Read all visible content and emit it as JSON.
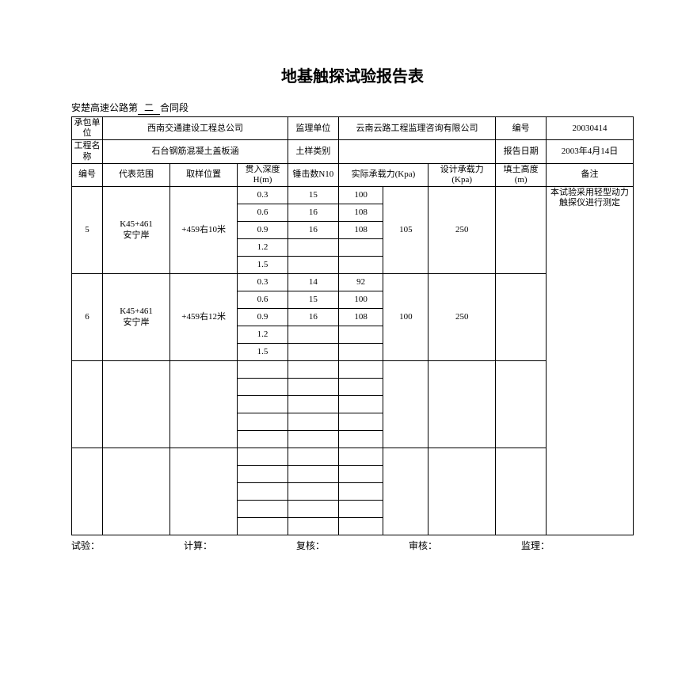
{
  "title": "地基触探试验报告表",
  "subtitle_prefix": "安楚高速公路第",
  "subtitle_number": "二",
  "subtitle_suffix": "合同段",
  "header": {
    "contractor_lbl": "承包单位",
    "contractor_val": "西南交通建设工程总公司",
    "supervisor_lbl": "监理单位",
    "supervisor_val": "云南云路工程监理咨询有限公司",
    "code_lbl": "编号",
    "code_val": "20030414",
    "project_lbl": "工程名称",
    "project_val": "石台钢筋混凝土盖板涵",
    "soil_lbl": "土样类别",
    "soil_val": "",
    "date_lbl": "报告日期",
    "date_val": "2003年4月14日"
  },
  "columns": {
    "no": "编号",
    "range": "代表范围",
    "position": "取样位置",
    "depth": "贯入深度H(m)",
    "hammer": "锤击数N10",
    "actual": "实际承载力(Kpa)",
    "design": "设计承载力(Kpa)",
    "fill": "填土高度(m)",
    "remark": "备注"
  },
  "groups": [
    {
      "no": "5",
      "range": "K45+461安宁岸",
      "position": "+459右10米",
      "actual": "105",
      "design": "250",
      "fill": "",
      "rows": [
        {
          "depth": "0.3",
          "hammer": "15",
          "value": "100"
        },
        {
          "depth": "0.6",
          "hammer": "16",
          "value": "108"
        },
        {
          "depth": "0.9",
          "hammer": "16",
          "value": "108"
        },
        {
          "depth": "1.2",
          "hammer": "",
          "value": ""
        },
        {
          "depth": "1.5",
          "hammer": "",
          "value": ""
        }
      ]
    },
    {
      "no": "6",
      "range": "K45+461安宁岸",
      "position": "+459右12米",
      "actual": "100",
      "design": "250",
      "fill": "",
      "rows": [
        {
          "depth": "0.3",
          "hammer": "14",
          "value": "92"
        },
        {
          "depth": "0.6",
          "hammer": "15",
          "value": "100"
        },
        {
          "depth": "0.9",
          "hammer": "16",
          "value": "108"
        },
        {
          "depth": "1.2",
          "hammer": "",
          "value": ""
        },
        {
          "depth": "1.5",
          "hammer": "",
          "value": ""
        }
      ]
    },
    {
      "no": "",
      "range": "",
      "position": "",
      "actual": "",
      "design": "",
      "fill": "",
      "rows": [
        {
          "depth": "",
          "hammer": "",
          "value": ""
        },
        {
          "depth": "",
          "hammer": "",
          "value": ""
        },
        {
          "depth": "",
          "hammer": "",
          "value": ""
        },
        {
          "depth": "",
          "hammer": "",
          "value": ""
        },
        {
          "depth": "",
          "hammer": "",
          "value": ""
        }
      ]
    },
    {
      "no": "",
      "range": "",
      "position": "",
      "actual": "",
      "design": "",
      "fill": "",
      "rows": [
        {
          "depth": "",
          "hammer": "",
          "value": ""
        },
        {
          "depth": "",
          "hammer": "",
          "value": ""
        },
        {
          "depth": "",
          "hammer": "",
          "value": ""
        },
        {
          "depth": "",
          "hammer": "",
          "value": ""
        },
        {
          "depth": "",
          "hammer": "",
          "value": ""
        }
      ]
    }
  ],
  "remark_text": "本试验采用轻型动力触探仪进行测定",
  "footer": {
    "test": "试验：",
    "calc": "计算：",
    "review": "复核：",
    "audit": "审核：",
    "supervise": "监理："
  },
  "style": {
    "page_bg": "#ffffff",
    "border_color": "#000000",
    "font_family": "SimSun",
    "title_fontsize_pt": 15,
    "body_fontsize_pt": 8.5,
    "col_widths_pct": [
      5.5,
      12,
      12,
      9,
      9,
      8,
      8,
      12,
      9,
      15.5
    ]
  }
}
